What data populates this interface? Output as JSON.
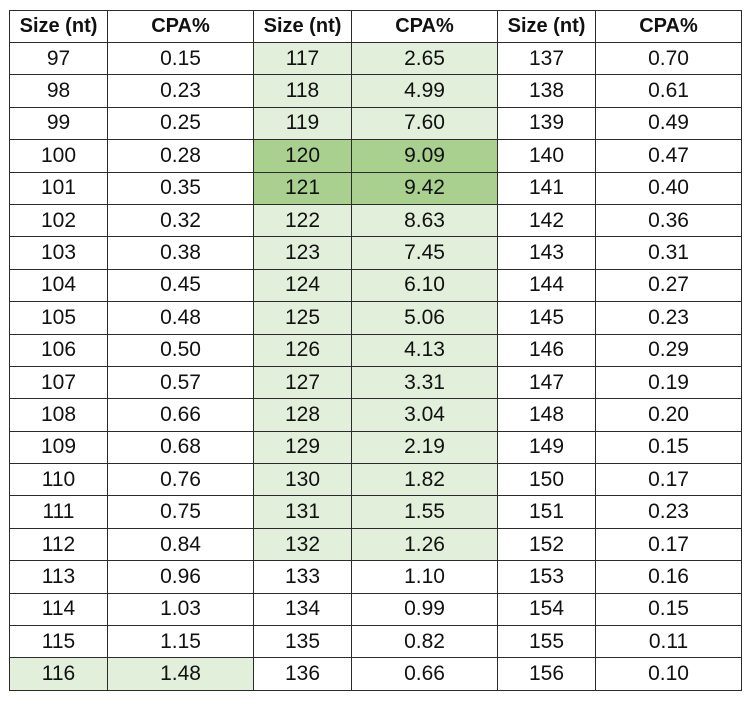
{
  "table": {
    "headers": [
      "Size (nt)",
      "CPA%",
      "Size (nt)",
      "CPA%",
      "Size (nt)",
      "CPA%"
    ],
    "highlight_colors": {
      "light": "#e2efda",
      "strong": "#a9d08e"
    },
    "rows": [
      [
        "97",
        "0.15",
        "117",
        "2.65",
        "137",
        "0.70"
      ],
      [
        "98",
        "0.23",
        "118",
        "4.99",
        "138",
        "0.61"
      ],
      [
        "99",
        "0.25",
        "119",
        "7.60",
        "139",
        "0.49"
      ],
      [
        "100",
        "0.28",
        "120",
        "9.09",
        "140",
        "0.47"
      ],
      [
        "101",
        "0.35",
        "121",
        "9.42",
        "141",
        "0.40"
      ],
      [
        "102",
        "0.32",
        "122",
        "8.63",
        "142",
        "0.36"
      ],
      [
        "103",
        "0.38",
        "123",
        "7.45",
        "143",
        "0.31"
      ],
      [
        "104",
        "0.45",
        "124",
        "6.10",
        "144",
        "0.27"
      ],
      [
        "105",
        "0.48",
        "125",
        "5.06",
        "145",
        "0.23"
      ],
      [
        "106",
        "0.50",
        "126",
        "4.13",
        "146",
        "0.29"
      ],
      [
        "107",
        "0.57",
        "127",
        "3.31",
        "147",
        "0.19"
      ],
      [
        "108",
        "0.66",
        "128",
        "3.04",
        "148",
        "0.20"
      ],
      [
        "109",
        "0.68",
        "129",
        "2.19",
        "149",
        "0.15"
      ],
      [
        "110",
        "0.76",
        "130",
        "1.82",
        "150",
        "0.17"
      ],
      [
        "111",
        "0.75",
        "131",
        "1.55",
        "151",
        "0.23"
      ],
      [
        "112",
        "0.84",
        "132",
        "1.26",
        "152",
        "0.17"
      ],
      [
        "113",
        "0.96",
        "133",
        "1.10",
        "153",
        "0.16"
      ],
      [
        "114",
        "1.03",
        "134",
        "0.99",
        "154",
        "0.15"
      ],
      [
        "115",
        "1.15",
        "135",
        "0.82",
        "155",
        "0.11"
      ],
      [
        "116",
        "1.48",
        "136",
        "0.66",
        "156",
        "0.10"
      ]
    ],
    "highlights": {
      "strong": [
        [
          3,
          2
        ],
        [
          3,
          3
        ],
        [
          4,
          2
        ],
        [
          4,
          3
        ]
      ],
      "light": [
        [
          0,
          2
        ],
        [
          0,
          3
        ],
        [
          1,
          2
        ],
        [
          1,
          3
        ],
        [
          2,
          2
        ],
        [
          2,
          3
        ],
        [
          5,
          2
        ],
        [
          5,
          3
        ],
        [
          6,
          2
        ],
        [
          6,
          3
        ],
        [
          7,
          2
        ],
        [
          7,
          3
        ],
        [
          8,
          2
        ],
        [
          8,
          3
        ],
        [
          9,
          2
        ],
        [
          9,
          3
        ],
        [
          10,
          2
        ],
        [
          10,
          3
        ],
        [
          11,
          2
        ],
        [
          11,
          3
        ],
        [
          12,
          2
        ],
        [
          12,
          3
        ],
        [
          13,
          2
        ],
        [
          13,
          3
        ],
        [
          14,
          2
        ],
        [
          14,
          3
        ],
        [
          15,
          2
        ],
        [
          15,
          3
        ],
        [
          19,
          0
        ],
        [
          19,
          1
        ]
      ]
    }
  }
}
